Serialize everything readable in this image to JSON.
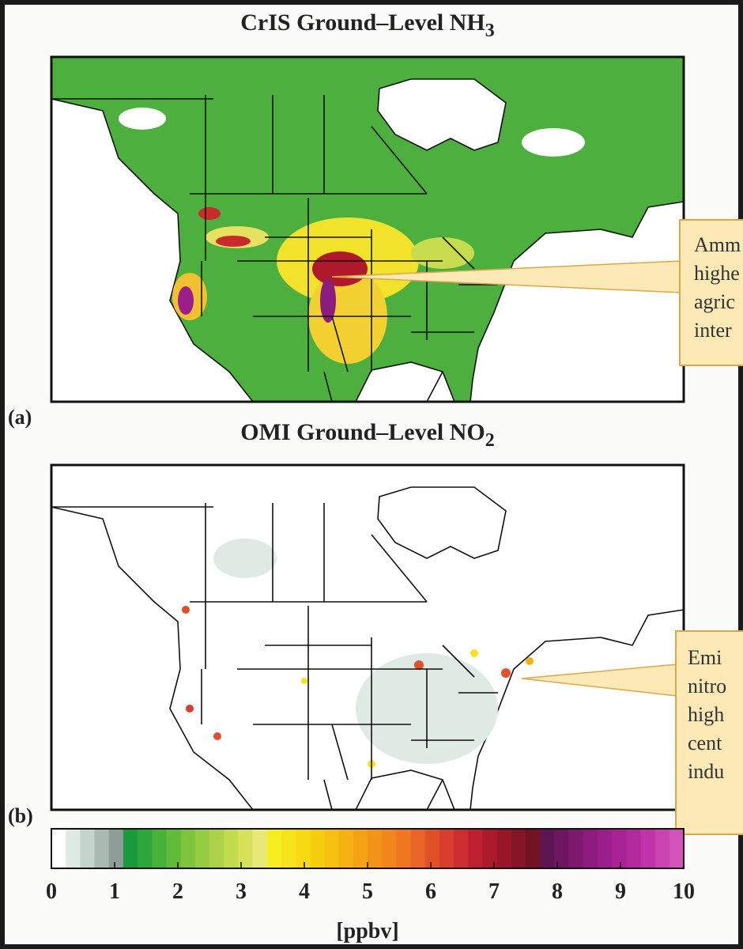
{
  "panels": [
    {
      "label": "(a)",
      "title": "CrIS Ground–Level NH",
      "title_sub": "3",
      "callout": [
        "Amm",
        "highe",
        "agric",
        "inter"
      ]
    },
    {
      "label": "(b)",
      "title": "OMI Ground–Level NO",
      "title_sub": "2",
      "callout": [
        "Emi",
        "nitro",
        "high",
        "cent",
        "indu"
      ]
    }
  ],
  "colorbar": {
    "lim": [
      0,
      10
    ],
    "ticks": [
      0,
      1,
      2,
      3,
      4,
      5,
      6,
      7,
      8,
      9,
      10
    ],
    "label": "[ppbv]",
    "colors": [
      "#ffffff",
      "#dfeae5",
      "#c4d4cc",
      "#a9bab2",
      "#8e9e96",
      "#1a9a3c",
      "#2ea83c",
      "#47b23a",
      "#62bb38",
      "#7dc33c",
      "#96cb42",
      "#acd347",
      "#c2db4d",
      "#d6e25a",
      "#e8e878",
      "#f5ef22",
      "#f6e41a",
      "#f7d914",
      "#f8cd10",
      "#f7c010",
      "#f6b212",
      "#f5a315",
      "#f39418",
      "#f2851c",
      "#f07620",
      "#ea6428",
      "#e2502a",
      "#d93d2c",
      "#cd2c30",
      "#bd202e",
      "#aa1a2b",
      "#971729",
      "#841526",
      "#721322",
      "#5c1552",
      "#6c1760",
      "#7d1a70",
      "#8d1c7e",
      "#9b1f8a",
      "#a92395",
      "#b5299f",
      "#c133a8",
      "#cb44b1",
      "#d354b9"
    ]
  }
}
